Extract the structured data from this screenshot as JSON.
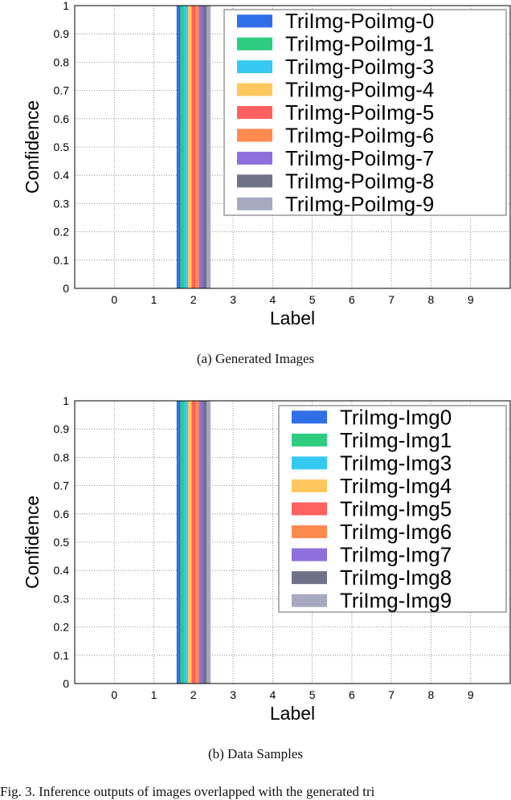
{
  "colors": [
    "#2f6fe8",
    "#2ecc7f",
    "#35c9f2",
    "#ffc75e",
    "#ff6060",
    "#ff8a50",
    "#8e6fdc",
    "#6f7289",
    "#a7a9c0"
  ],
  "chart_data": [
    {
      "type": "bar",
      "caption": "(a) Generated Images",
      "xlabel": "Label",
      "ylabel": "Confidence",
      "categories": [
        "0",
        "1",
        "2",
        "3",
        "4",
        "5",
        "6",
        "7",
        "8",
        "9"
      ],
      "ylim": [
        0,
        1
      ],
      "yticks": [
        "0",
        "0.1",
        "0.2",
        "0.3",
        "0.4",
        "0.5",
        "0.6",
        "0.7",
        "0.8",
        "0.9",
        "1"
      ],
      "grid": true,
      "legend_position": "top-right",
      "series": [
        {
          "name": "TriImg-PoiImg-0",
          "values": [
            0,
            0,
            1,
            0,
            0,
            0,
            0,
            0,
            0,
            0
          ]
        },
        {
          "name": "TriImg-PoiImg-1",
          "values": [
            0,
            0,
            1,
            0,
            0,
            0,
            0,
            0,
            0,
            0
          ]
        },
        {
          "name": "TriImg-PoiImg-3",
          "values": [
            0,
            0,
            1,
            0,
            0,
            0,
            0,
            0,
            0,
            0
          ]
        },
        {
          "name": "TriImg-PoiImg-4",
          "values": [
            0,
            0,
            1,
            0,
            0,
            0,
            0,
            0,
            0,
            0
          ]
        },
        {
          "name": "TriImg-PoiImg-5",
          "values": [
            0,
            0,
            1,
            0,
            0,
            0,
            0,
            0,
            0,
            0
          ]
        },
        {
          "name": "TriImg-PoiImg-6",
          "values": [
            0,
            0,
            1,
            0,
            0,
            0,
            0,
            0,
            0,
            0
          ]
        },
        {
          "name": "TriImg-PoiImg-7",
          "values": [
            0,
            0,
            1,
            0,
            0,
            0,
            0,
            0,
            0,
            0
          ]
        },
        {
          "name": "TriImg-PoiImg-8",
          "values": [
            0,
            0,
            1,
            0,
            0,
            0,
            0,
            0,
            0,
            0
          ]
        },
        {
          "name": "TriImg-PoiImg-9",
          "values": [
            0,
            0,
            1,
            0,
            0,
            0,
            0,
            0,
            0,
            0
          ]
        }
      ]
    },
    {
      "type": "bar",
      "caption": "(b) Data Samples",
      "xlabel": "Label",
      "ylabel": "Confidence",
      "categories": [
        "0",
        "1",
        "2",
        "3",
        "4",
        "5",
        "6",
        "7",
        "8",
        "9"
      ],
      "ylim": [
        0,
        1
      ],
      "yticks": [
        "0",
        "0.1",
        "0.2",
        "0.3",
        "0.4",
        "0.5",
        "0.6",
        "0.7",
        "0.8",
        "0.9",
        "1"
      ],
      "grid": true,
      "legend_position": "top-right",
      "series": [
        {
          "name": "TriImg-Img0",
          "values": [
            0,
            0,
            1,
            0,
            0,
            0,
            0,
            0,
            0,
            0
          ]
        },
        {
          "name": "TriImg-Img1",
          "values": [
            0,
            0,
            1,
            0,
            0,
            0,
            0,
            0,
            0,
            0
          ]
        },
        {
          "name": "TriImg-Img3",
          "values": [
            0,
            0,
            1,
            0,
            0,
            0,
            0,
            0,
            0,
            0
          ]
        },
        {
          "name": "TriImg-Img4",
          "values": [
            0,
            0,
            1,
            0,
            0,
            0,
            0,
            0,
            0,
            0
          ]
        },
        {
          "name": "TriImg-Img5",
          "values": [
            0,
            0,
            1,
            0,
            0,
            0,
            0,
            0,
            0,
            0
          ]
        },
        {
          "name": "TriImg-Img6",
          "values": [
            0,
            0,
            1,
            0,
            0,
            0,
            0,
            0,
            0,
            0
          ]
        },
        {
          "name": "TriImg-Img7",
          "values": [
            0,
            0,
            1,
            0,
            0,
            0,
            0,
            0,
            0,
            0
          ]
        },
        {
          "name": "TriImg-Img8",
          "values": [
            0,
            0,
            1,
            0,
            0,
            0,
            0,
            0,
            0,
            0
          ]
        },
        {
          "name": "TriImg-Img9",
          "values": [
            0,
            0,
            1,
            0,
            0,
            0,
            0,
            0,
            0,
            0
          ]
        }
      ]
    }
  ],
  "figure_caption": "Fig. 3.   Inference outputs of images overlapped with the generated tri"
}
